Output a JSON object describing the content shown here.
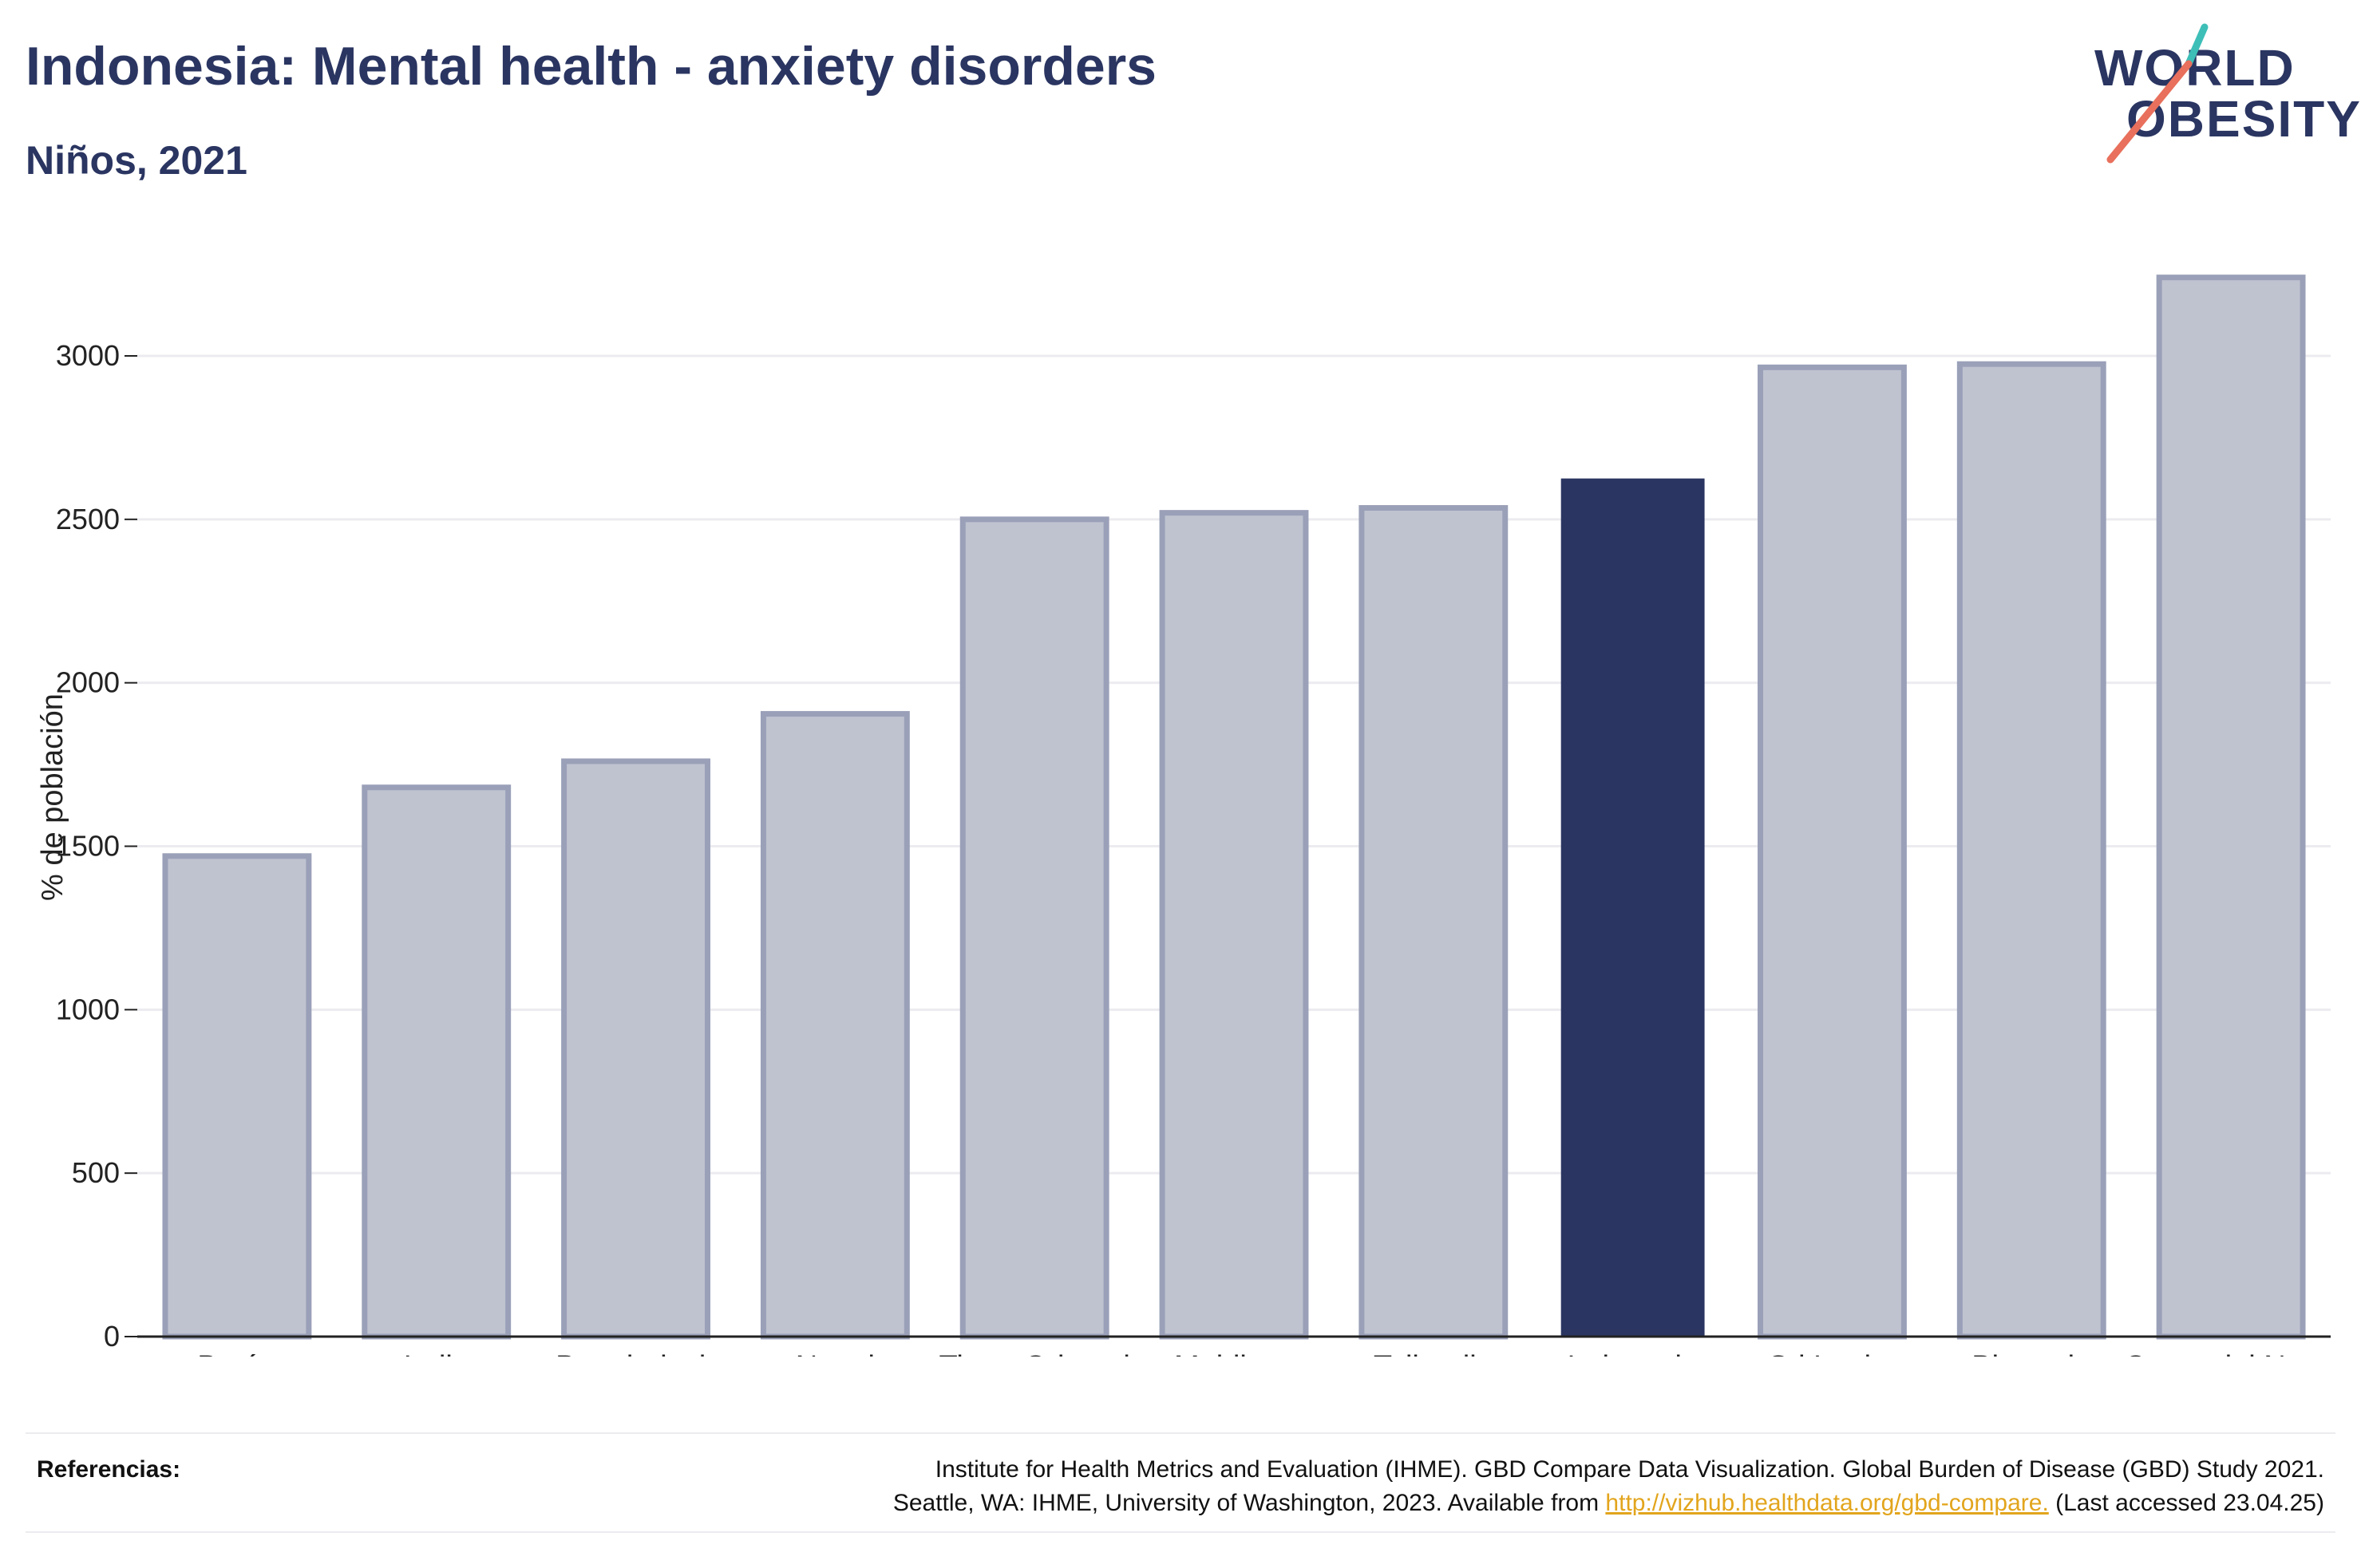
{
  "header": {
    "title": "Indonesia: Mental health - anxiety disorders",
    "subtitle": "Niños, 2021"
  },
  "logo": {
    "line1": "WORLD",
    "line2": "OBESITY",
    "colors": {
      "text": "#2a3561",
      "slash_top": "#3dbfb8",
      "slash_bottom": "#e8705c"
    }
  },
  "colors": {
    "highlight_bar": "#2a3561",
    "other_bar_fill": "#bfc3d0",
    "other_bar_stroke": "#9aa0b8",
    "grid": "#ececf0",
    "axis": "#222222"
  },
  "chart_data": {
    "type": "bar",
    "title": "Indonesia: Mental health - anxiety disorders",
    "subtitle": "Niños, 2021",
    "xlabel": "",
    "ylabel": "% de población",
    "categories": [
      "Bután",
      "India",
      "Bangladesh",
      "Nepal",
      "Timor Oriental",
      "Maldivas",
      "Tailandia",
      "Indonesia",
      "Sri Lanka",
      "Birmania",
      "Corea del Norte"
    ],
    "values": [
      1470,
      1680,
      1760,
      1905,
      2500,
      2520,
      2535,
      2625,
      2965,
      2975,
      3240
    ],
    "highlight": "Indonesia",
    "ylim": [
      0,
      3400
    ],
    "yticks": [
      0,
      500,
      1000,
      1500,
      2000,
      2500,
      3000
    ],
    "grid": true,
    "legend": "none"
  },
  "footer": {
    "ref_label": "Referencias:",
    "ref_line1": "Institute for Health Metrics and Evaluation (IHME). GBD Compare Data Visualization. Global Burden of Disease (GBD) Study 2021.",
    "ref_line2_prefix": "Seattle, WA: IHME, University of Washington, 2023. Available from ",
    "ref_link": "http://vizhub.healthdata.org/gbd-compare.",
    "ref_line2_suffix": " (Last accessed 23.04.25)"
  }
}
